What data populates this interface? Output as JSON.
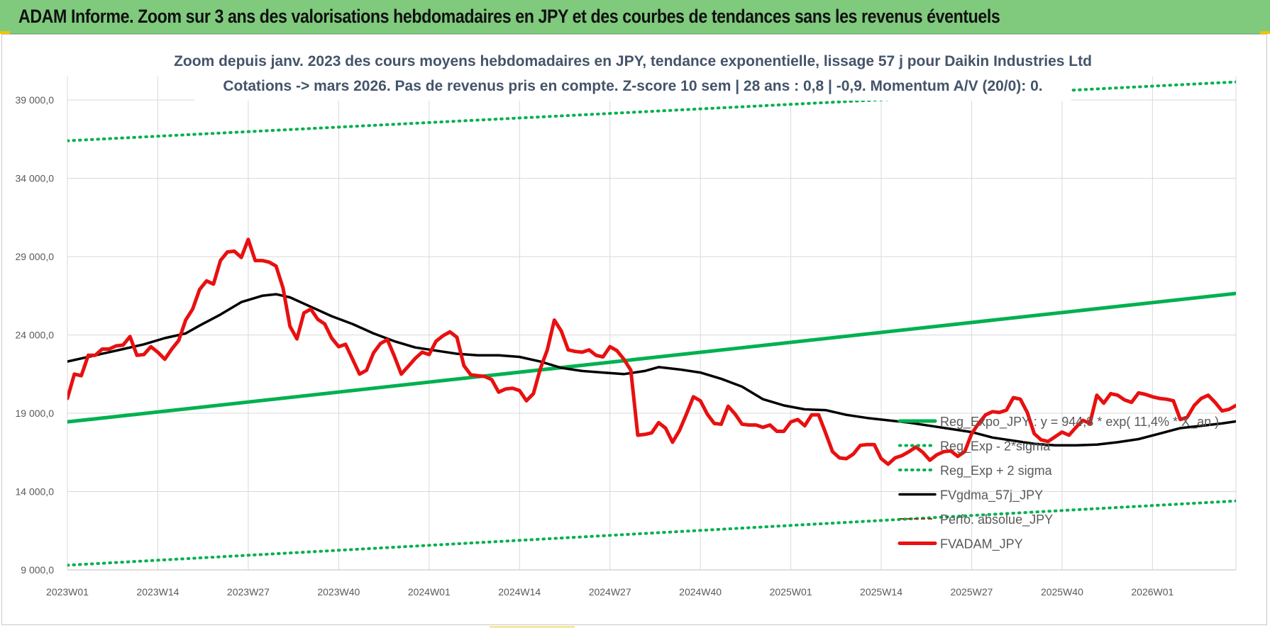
{
  "header": {
    "title": "ADAM Informe. Zoom sur 3 ans des valorisations hebdomadaires en JPY et des courbes de tendances sans les revenus éventuels"
  },
  "colors": {
    "banner": "#7fca7d",
    "trend": "#00b050",
    "smoothed": "#000000",
    "adam": "#e81010",
    "perf": "#843c0c"
  },
  "chart_data": {
    "type": "line",
    "title_line1": "Zoom depuis janv. 2023 des cours moyens hebdomadaires en JPY, tendance exponentielle, lissage 57 j pour Daikin Industries Ltd",
    "title_line2": "Cotations -> mars 2026. Pas de revenus pris en compte. Z-score 10 sem | 28 ans : 0,8 | -0,9. Momentum A/V (20/0): 0.",
    "ylim": [
      9000,
      40500
    ],
    "y_ticks": [
      {
        "value": 9000,
        "label": "9 000,0"
      },
      {
        "value": 14000,
        "label": "14 000,0"
      },
      {
        "value": 19000,
        "label": "19 000,0"
      },
      {
        "value": 24000,
        "label": "24 000,0"
      },
      {
        "value": 29000,
        "label": "29 000,0"
      },
      {
        "value": 34000,
        "label": "34 000,0"
      },
      {
        "value": 39000,
        "label": "39 000,0"
      }
    ],
    "x_ticks": [
      "2023W01",
      "2023W14",
      "2023W27",
      "2023W40",
      "2024W01",
      "2024W14",
      "2024W27",
      "2024W40",
      "2025W01",
      "2025W14",
      "2025W27",
      "2025W40",
      "2026W01"
    ],
    "grid": true,
    "legend_position": "right-bottom",
    "series": [
      {
        "name": "Reg_Expo_JPY : y = 944,8 * exp( 11,4% * X_an )",
        "style": "solid-thick",
        "color": "#00b050",
        "points": [
          [
            0,
            18450
          ],
          [
            170,
            26750
          ]
        ]
      },
      {
        "name": "Reg_Exp - 2*sigma",
        "style": "dotted",
        "color": "#00b050",
        "points": [
          [
            0,
            9300
          ],
          [
            170,
            13450
          ]
        ]
      },
      {
        "name": "Reg_Exp + 2 sigma",
        "style": "dotted",
        "color": "#00b050",
        "points": [
          [
            0,
            36400
          ],
          [
            170,
            40200
          ]
        ]
      },
      {
        "name": "FVgdma_57j_JPY",
        "style": "solid",
        "color": "#000000",
        "points": [
          [
            0,
            22300
          ],
          [
            2,
            22500
          ],
          [
            5,
            22800
          ],
          [
            8,
            23100
          ],
          [
            11,
            23400
          ],
          [
            14,
            23800
          ],
          [
            17,
            24100
          ],
          [
            19,
            24600
          ],
          [
            22,
            25300
          ],
          [
            25,
            26100
          ],
          [
            28,
            26500
          ],
          [
            30,
            26600
          ],
          [
            32,
            26400
          ],
          [
            35,
            25800
          ],
          [
            38,
            25200
          ],
          [
            41,
            24700
          ],
          [
            44,
            24100
          ],
          [
            47,
            23600
          ],
          [
            50,
            23200
          ],
          [
            53,
            23000
          ],
          [
            56,
            22800
          ],
          [
            59,
            22700
          ],
          [
            62,
            22700
          ],
          [
            65,
            22600
          ],
          [
            68,
            22300
          ],
          [
            71,
            21900
          ],
          [
            74,
            21700
          ],
          [
            77,
            21600
          ],
          [
            80,
            21500
          ],
          [
            83,
            21700
          ],
          [
            85,
            21950
          ],
          [
            88,
            21800
          ],
          [
            91,
            21600
          ],
          [
            94,
            21200
          ],
          [
            97,
            20700
          ],
          [
            100,
            19900
          ],
          [
            103,
            19500
          ],
          [
            106,
            19250
          ],
          [
            109,
            19200
          ],
          [
            112,
            18900
          ],
          [
            115,
            18700
          ],
          [
            118,
            18550
          ],
          [
            121,
            18400
          ],
          [
            124,
            18200
          ],
          [
            127,
            18000
          ],
          [
            130,
            17800
          ],
          [
            133,
            17450
          ],
          [
            136,
            17250
          ],
          [
            139,
            17050
          ],
          [
            142,
            16950
          ],
          [
            145,
            16950
          ],
          [
            148,
            17000
          ],
          [
            151,
            17150
          ],
          [
            154,
            17350
          ],
          [
            157,
            17700
          ],
          [
            160,
            18050
          ],
          [
            163,
            18200
          ],
          [
            166,
            18350
          ],
          [
            169,
            18550
          ],
          [
            172,
            18800
          ],
          [
            175,
            19050
          ],
          [
            178,
            19250
          ],
          [
            181,
            19400
          ],
          [
            184,
            19400
          ],
          [
            187,
            19400
          ],
          [
            190,
            19450
          ],
          [
            192,
            19350
          ]
        ]
      },
      {
        "name": "Perfo. absolue_JPY",
        "style": "dashed",
        "color": "#843c0c",
        "points": []
      },
      {
        "name": "FVADAM_JPY",
        "style": "solid-thick",
        "color": "#e81010",
        "points": [
          [
            0,
            19950
          ],
          [
            1,
            21500
          ],
          [
            2,
            21400
          ],
          [
            3,
            22700
          ],
          [
            4,
            22700
          ],
          [
            5,
            23100
          ],
          [
            6,
            23100
          ],
          [
            7,
            23300
          ],
          [
            8,
            23350
          ],
          [
            9,
            23900
          ],
          [
            10,
            22700
          ],
          [
            11,
            22750
          ],
          [
            12,
            23250
          ],
          [
            13,
            22900
          ],
          [
            14,
            22450
          ],
          [
            15,
            23100
          ],
          [
            16,
            23650
          ],
          [
            17,
            24950
          ],
          [
            18,
            25650
          ],
          [
            19,
            26900
          ],
          [
            20,
            27450
          ],
          [
            21,
            27250
          ],
          [
            22,
            28750
          ],
          [
            23,
            29300
          ],
          [
            24,
            29350
          ],
          [
            25,
            28950
          ],
          [
            26,
            30100
          ],
          [
            27,
            28750
          ],
          [
            28,
            28750
          ],
          [
            29,
            28650
          ],
          [
            30,
            28400
          ],
          [
            31,
            27000
          ],
          [
            32,
            24550
          ],
          [
            33,
            23750
          ],
          [
            34,
            25400
          ],
          [
            35,
            25650
          ],
          [
            36,
            25000
          ],
          [
            37,
            24700
          ],
          [
            38,
            23800
          ],
          [
            39,
            23250
          ],
          [
            40,
            23400
          ],
          [
            41,
            22450
          ],
          [
            42,
            21500
          ],
          [
            43,
            21750
          ],
          [
            44,
            22850
          ],
          [
            45,
            23450
          ],
          [
            46,
            23700
          ],
          [
            47,
            22650
          ],
          [
            48,
            21500
          ],
          [
            49,
            22000
          ],
          [
            50,
            22500
          ],
          [
            51,
            22900
          ],
          [
            52,
            22750
          ],
          [
            53,
            23600
          ],
          [
            54,
            23950
          ],
          [
            55,
            24200
          ],
          [
            56,
            23850
          ],
          [
            57,
            22050
          ],
          [
            58,
            21450
          ],
          [
            59,
            21400
          ],
          [
            60,
            21350
          ],
          [
            61,
            21150
          ],
          [
            62,
            20350
          ],
          [
            63,
            20550
          ],
          [
            64,
            20600
          ],
          [
            65,
            20450
          ],
          [
            66,
            19800
          ],
          [
            67,
            20250
          ],
          [
            68,
            21850
          ],
          [
            69,
            23050
          ],
          [
            70,
            24950
          ],
          [
            71,
            24250
          ],
          [
            72,
            23050
          ],
          [
            73,
            22950
          ],
          [
            74,
            22900
          ],
          [
            75,
            23050
          ],
          [
            76,
            22700
          ],
          [
            77,
            22600
          ],
          [
            78,
            23250
          ],
          [
            79,
            23000
          ],
          [
            80,
            22450
          ],
          [
            81,
            21750
          ],
          [
            82,
            17600
          ],
          [
            83,
            17650
          ],
          [
            84,
            17750
          ],
          [
            85,
            18400
          ],
          [
            86,
            18050
          ],
          [
            87,
            17150
          ],
          [
            88,
            17900
          ],
          [
            89,
            18950
          ],
          [
            90,
            20050
          ],
          [
            91,
            19800
          ],
          [
            92,
            18950
          ],
          [
            93,
            18350
          ],
          [
            94,
            18300
          ],
          [
            95,
            19450
          ],
          [
            96,
            18950
          ],
          [
            97,
            18300
          ],
          [
            98,
            18250
          ],
          [
            99,
            18250
          ],
          [
            100,
            18100
          ],
          [
            101,
            18250
          ],
          [
            102,
            17850
          ],
          [
            103,
            17850
          ],
          [
            104,
            18450
          ],
          [
            105,
            18600
          ],
          [
            106,
            18200
          ],
          [
            107,
            18900
          ],
          [
            108,
            18900
          ],
          [
            109,
            17750
          ],
          [
            110,
            16550
          ],
          [
            111,
            16150
          ],
          [
            112,
            16100
          ],
          [
            113,
            16400
          ],
          [
            114,
            16950
          ],
          [
            115,
            17000
          ],
          [
            116,
            17000
          ],
          [
            117,
            16100
          ],
          [
            118,
            15750
          ],
          [
            119,
            16150
          ],
          [
            120,
            16300
          ],
          [
            121,
            16550
          ],
          [
            122,
            16850
          ],
          [
            123,
            16500
          ],
          [
            124,
            16000
          ],
          [
            125,
            16350
          ],
          [
            126,
            16550
          ],
          [
            127,
            16600
          ],
          [
            128,
            16250
          ],
          [
            129,
            16550
          ],
          [
            130,
            17700
          ],
          [
            131,
            18350
          ],
          [
            132,
            18900
          ],
          [
            133,
            19100
          ],
          [
            134,
            19050
          ],
          [
            135,
            19200
          ],
          [
            136,
            20000
          ],
          [
            137,
            19900
          ],
          [
            138,
            19050
          ],
          [
            139,
            17700
          ],
          [
            140,
            17300
          ],
          [
            141,
            17200
          ],
          [
            142,
            17500
          ],
          [
            143,
            17800
          ],
          [
            144,
            17600
          ],
          [
            145,
            18100
          ],
          [
            146,
            18550
          ],
          [
            147,
            18350
          ],
          [
            148,
            20150
          ],
          [
            149,
            19650
          ],
          [
            150,
            20250
          ],
          [
            151,
            20150
          ],
          [
            152,
            19850
          ],
          [
            153,
            19700
          ],
          [
            154,
            20300
          ],
          [
            155,
            20200
          ],
          [
            156,
            20050
          ],
          [
            157,
            19950
          ],
          [
            158,
            19900
          ],
          [
            159,
            19800
          ],
          [
            160,
            18600
          ],
          [
            161,
            18750
          ],
          [
            162,
            19500
          ],
          [
            163,
            19950
          ],
          [
            164,
            20150
          ],
          [
            165,
            19700
          ],
          [
            166,
            19150
          ],
          [
            167,
            19250
          ],
          [
            168,
            19500
          ]
        ]
      }
    ]
  }
}
